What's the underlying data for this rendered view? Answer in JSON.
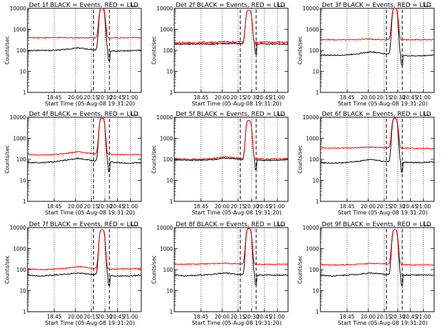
{
  "figure": {
    "x_tick_labels": [
      "18:45",
      "20:00",
      "20:15",
      "20:30",
      "20:45",
      "21:00"
    ],
    "y_tick_labels": [
      "1",
      "10",
      "100",
      "1000",
      "10000"
    ],
    "xlabel": "Start Time (05-Aug-08 19:31:20)",
    "ylabel": "Counts/sec",
    "series_colors": {
      "events": "#000000",
      "lld": "#ff0000"
    },
    "dotted_grid_at": [
      "18:45",
      "20:00",
      "20:15",
      "20:30",
      "20:45",
      "21:00"
    ],
    "dashed_markers_description": "two dashed vertical lines bracketing the peak"
  },
  "chart_data": [
    {
      "type": "line",
      "title": "Det 1f BLACK = Events, RED = LLD",
      "xlabel": "Start Time (05-Aug-08 19:31:20)",
      "ylabel": "Counts/sec",
      "yscale": "log",
      "ylim": [
        1,
        10000
      ],
      "grid": "x-dotted",
      "series": [
        {
          "color": "#000000",
          "baseline_values": [
            95,
            100,
            100,
            110,
            130,
            110,
            100,
            95,
            95,
            100
          ],
          "peak": 10000
        },
        {
          "color": "#ff0000",
          "baseline_values": [
            400,
            400,
            400,
            400,
            400,
            400,
            400,
            400,
            400,
            400
          ],
          "peak": 10000
        }
      ]
    },
    {
      "type": "line",
      "title": "Det 2f BLACK = Events, RED = LLD",
      "xlabel": "Start Time (05-Aug-08 19:31:20)",
      "ylabel": "Counts/sec",
      "yscale": "log",
      "ylim": [
        1,
        10000
      ],
      "grid": "x-dotted",
      "series": [
        {
          "color": "#000000",
          "baseline_values": [
            200,
            200,
            200,
            200,
            210,
            210,
            200,
            200,
            200,
            200
          ],
          "peak": 8000
        },
        {
          "color": "#ff0000",
          "baseline_values": [
            230,
            230,
            230,
            240,
            250,
            250,
            240,
            240,
            240,
            240
          ],
          "peak": 8000
        }
      ]
    },
    {
      "type": "line",
      "title": "Det 3f BLACK = Events, RED = LLD",
      "xlabel": "Start Time (05-Aug-08 19:31:20)",
      "ylabel": "Counts/sec",
      "yscale": "log",
      "ylim": [
        1,
        10000
      ],
      "grid": "x-dotted",
      "series": [
        {
          "color": "#000000",
          "baseline_values": [
            60,
            58,
            60,
            70,
            85,
            70,
            60,
            55,
            55,
            60
          ],
          "peak": 10000
        },
        {
          "color": "#ff0000",
          "baseline_values": [
            320,
            320,
            320,
            330,
            340,
            320,
            320,
            320,
            320,
            320
          ],
          "peak": 10000
        }
      ]
    },
    {
      "type": "line",
      "title": "Det 4f BLACK = Events, RED = LLD",
      "xlabel": "Start Time (05-Aug-08 19:31:20)",
      "ylabel": "Counts/sec",
      "yscale": "log",
      "ylim": [
        1,
        10000
      ],
      "grid": "x-dotted",
      "series": [
        {
          "color": "#000000",
          "baseline_values": [
            70,
            70,
            75,
            90,
            110,
            90,
            80,
            70,
            65,
            70
          ],
          "peak": 9000
        },
        {
          "color": "#ff0000",
          "baseline_values": [
            170,
            160,
            165,
            190,
            230,
            190,
            180,
            170,
            165,
            170
          ],
          "peak": 9000
        }
      ]
    },
    {
      "type": "line",
      "title": "Det 5f BLACK = Events, RED = LLD",
      "xlabel": "Start Time (05-Aug-08 19:31:20)",
      "ylabel": "Counts/sec",
      "yscale": "log",
      "ylim": [
        1,
        10000
      ],
      "grid": "x-dotted",
      "series": [
        {
          "color": "#000000",
          "baseline_values": [
            95,
            90,
            90,
            95,
            115,
            100,
            95,
            90,
            90,
            95
          ],
          "peak": 7000
        },
        {
          "color": "#ff0000",
          "baseline_values": [
            110,
            100,
            100,
            110,
            130,
            115,
            110,
            105,
            105,
            110
          ],
          "peak": 7000
        }
      ]
    },
    {
      "type": "line",
      "title": "Det 6f BLACK = Events, RED = LLD",
      "xlabel": "Start Time (05-Aug-08 19:31:20)",
      "ylabel": "Counts/sec",
      "yscale": "log",
      "ylim": [
        1,
        10000
      ],
      "grid": "x-dotted",
      "series": [
        {
          "color": "#000000",
          "baseline_values": [
            70,
            65,
            70,
            80,
            100,
            80,
            75,
            70,
            70,
            75
          ],
          "peak": 9000
        },
        {
          "color": "#ff0000",
          "baseline_values": [
            350,
            340,
            340,
            360,
            380,
            360,
            350,
            340,
            330,
            330
          ],
          "peak": 9000
        }
      ]
    },
    {
      "type": "line",
      "title": "Det 7f BLACK = Events, RED = LLD",
      "xlabel": "Start Time (05-Aug-08 19:31:20)",
      "ylabel": "Counts/sec",
      "yscale": "log",
      "ylim": [
        1,
        10000
      ],
      "grid": "x-dotted",
      "series": [
        {
          "color": "#000000",
          "baseline_values": [
            55,
            50,
            55,
            60,
            70,
            60,
            55,
            50,
            50,
            55
          ],
          "peak": 8000
        },
        {
          "color": "#ff0000",
          "baseline_values": [
            110,
            100,
            105,
            115,
            140,
            120,
            110,
            105,
            110,
            115
          ],
          "peak": 8000
        }
      ]
    },
    {
      "type": "line",
      "title": "Det 8f BLACK = Events, RED = LLD",
      "xlabel": "Start Time (05-Aug-08 19:31:20)",
      "ylabel": "Counts/sec",
      "yscale": "log",
      "ylim": [
        1,
        10000
      ],
      "grid": "x-dotted",
      "series": [
        {
          "color": "#000000",
          "baseline_values": [
            55,
            50,
            55,
            60,
            70,
            60,
            55,
            55,
            55,
            55
          ],
          "peak": 9000
        },
        {
          "color": "#ff0000",
          "baseline_values": [
            180,
            180,
            185,
            190,
            200,
            190,
            185,
            180,
            180,
            180
          ],
          "peak": 9000
        }
      ]
    },
    {
      "type": "line",
      "title": "Det 9f BLACK = Events, RED = LLD",
      "xlabel": "Start Time (05-Aug-08 19:31:20)",
      "ylabel": "Counts/sec",
      "yscale": "log",
      "ylim": [
        1,
        10000
      ],
      "grid": "x-dotted",
      "series": [
        {
          "color": "#000000",
          "baseline_values": [
            55,
            50,
            55,
            60,
            70,
            60,
            55,
            55,
            55,
            55
          ],
          "peak": 8000
        },
        {
          "color": "#ff0000",
          "baseline_values": [
            170,
            165,
            170,
            180,
            200,
            185,
            175,
            170,
            170,
            170
          ],
          "peak": 8000
        }
      ]
    }
  ]
}
